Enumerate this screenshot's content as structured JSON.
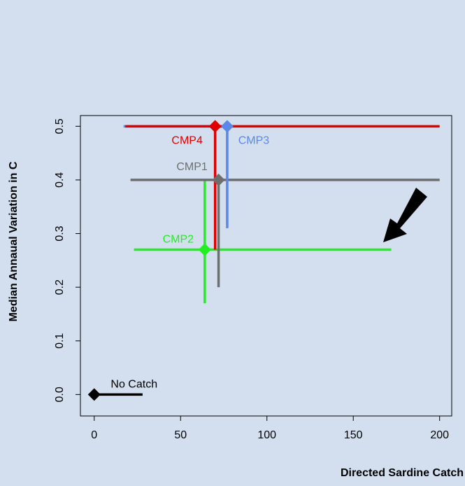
{
  "chart_data": {
    "type": "crosshair",
    "xlabel": "Directed Sardine Catch",
    "ylabel": "Median Annaual Variation in C",
    "xlim": [
      -8,
      207
    ],
    "xticks": [
      0,
      50,
      100,
      150,
      200
    ],
    "ylim": [
      -0.04,
      0.52
    ],
    "yticks": [
      {
        "value": 0,
        "label": "0.0"
      },
      0.1,
      0.2,
      0.3,
      0.4,
      0.5
    ],
    "series": [
      {
        "name": "No Catch",
        "color": "#000000",
        "x": 0,
        "y": 0,
        "x_low": 0,
        "x_high": 28,
        "y_low": null,
        "y_high": null
      },
      {
        "name": "CMP2",
        "color": "#22ee22",
        "x": 64,
        "y": 0.27,
        "x_low": 23,
        "x_high": 172,
        "y_low": 0.17,
        "y_high": 0.4
      },
      {
        "name": "CMP1",
        "color": "#6e6e6e",
        "x": 72,
        "y": 0.4,
        "x_low": 21,
        "x_high": 200,
        "y_low": 0.2,
        "y_high": 0.4
      },
      {
        "name": "CMP3",
        "color": "#5b87e8",
        "x": 77,
        "y": 0.5,
        "x_low": 17,
        "x_high": 77,
        "y_low": 0.31,
        "y_high": 0.5
      },
      {
        "name": "CMP4",
        "color": "#e00000",
        "x": 70,
        "y": 0.5,
        "x_low": 18,
        "x_high": 200,
        "y_low": 0.27,
        "y_high": 0.5
      }
    ]
  }
}
